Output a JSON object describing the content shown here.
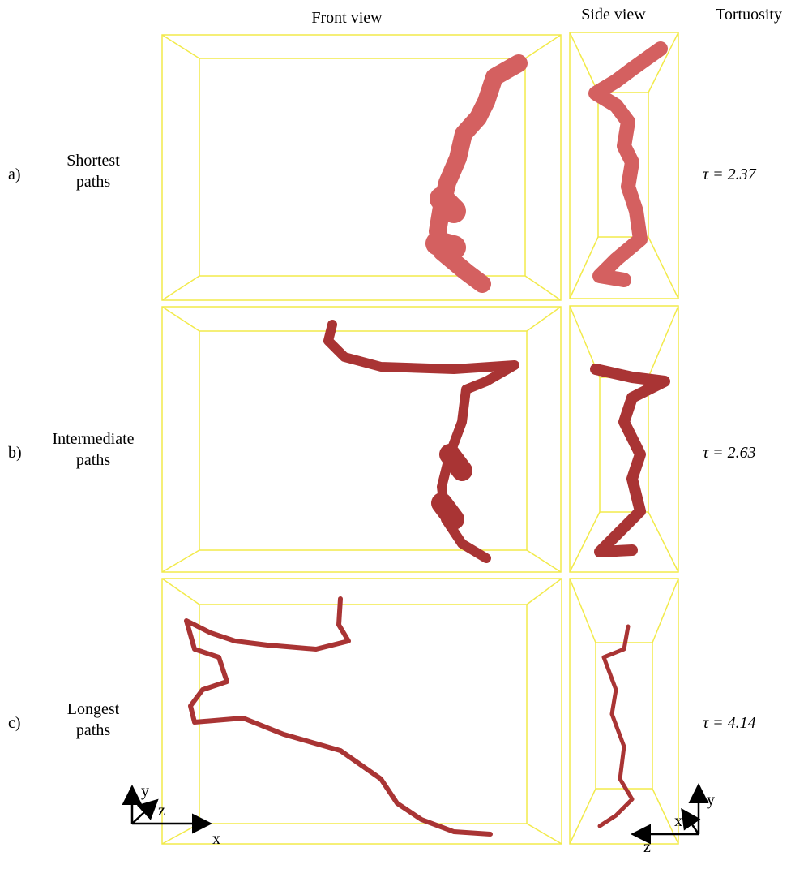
{
  "header": {
    "columns": [
      "Front view",
      "Side view",
      "Tortuosity"
    ]
  },
  "rows": [
    {
      "label": "a)",
      "name": [
        "Shortest",
        "paths"
      ],
      "tortuosity": "τ = 2.37"
    },
    {
      "label": "b)",
      "name": [
        "Intermediate",
        "paths"
      ],
      "tortuosity": "τ = 2.63"
    },
    {
      "label": "c)",
      "name": [
        "Longest",
        "paths"
      ],
      "tortuosity": "τ = 4.14"
    }
  ],
  "axes": {
    "left": [
      "y",
      "z",
      "x"
    ],
    "right": [
      "y",
      "x",
      "z"
    ]
  }
}
